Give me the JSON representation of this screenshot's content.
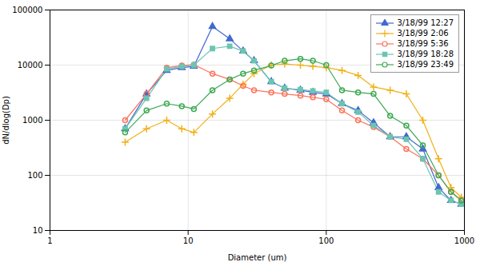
{
  "chart_data": {
    "type": "line",
    "title": "",
    "xlabel": "Diameter (um)",
    "ylabel": "dN/dlog(Dp)",
    "log": true,
    "xlim": [
      1,
      1000
    ],
    "ylim": [
      10,
      100000
    ],
    "xticks": [
      1,
      10,
      100,
      1000
    ],
    "yticks": [
      10,
      100,
      1000,
      10000,
      100000
    ],
    "grid": true,
    "legend": "upper right",
    "x": [
      3.5,
      5,
      7,
      9,
      11,
      15,
      20,
      25,
      30,
      40,
      50,
      65,
      80,
      100,
      130,
      170,
      220,
      290,
      380,
      500,
      650,
      800,
      950
    ],
    "series": [
      {
        "name": "3/18/99 12:27",
        "marker": "triangle",
        "values": [
          700,
          3000,
          8000,
          9000,
          9500,
          50000,
          30000,
          18000,
          12000,
          5000,
          3800,
          3500,
          3200,
          3000,
          2000,
          1500,
          900,
          500,
          500,
          300,
          60,
          35,
          30
        ]
      },
      {
        "name": "3/18/99 2:06",
        "marker": "plus",
        "values": [
          400,
          700,
          1000,
          700,
          600,
          1300,
          2500,
          4500,
          7000,
          10000,
          10500,
          10000,
          9500,
          9000,
          8000,
          6500,
          4000,
          3500,
          3000,
          1000,
          200,
          60,
          40
        ]
      },
      {
        "name": "3/18/99 5:36",
        "marker": "open_circle",
        "values": [
          1000,
          3000,
          9000,
          9800,
          10200,
          7000,
          5500,
          4200,
          3500,
          3200,
          3000,
          2800,
          2600,
          2400,
          1500,
          1000,
          750,
          500,
          300,
          200,
          100,
          50,
          35
        ]
      },
      {
        "name": "3/18/99 18:28",
        "marker": "square",
        "values": [
          700,
          2500,
          8500,
          9500,
          10000,
          20000,
          22000,
          18000,
          12000,
          5000,
          3800,
          3600,
          3400,
          3200,
          2000,
          1400,
          800,
          500,
          450,
          200,
          50,
          35,
          30
        ]
      },
      {
        "name": "3/18/99 23:49",
        "marker": "open_circle",
        "values": [
          600,
          1500,
          2000,
          1800,
          1600,
          3500,
          5500,
          7000,
          8000,
          9800,
          12000,
          13000,
          12000,
          10000,
          3500,
          3200,
          3000,
          1200,
          800,
          350,
          100,
          50,
          35
        ]
      }
    ]
  }
}
